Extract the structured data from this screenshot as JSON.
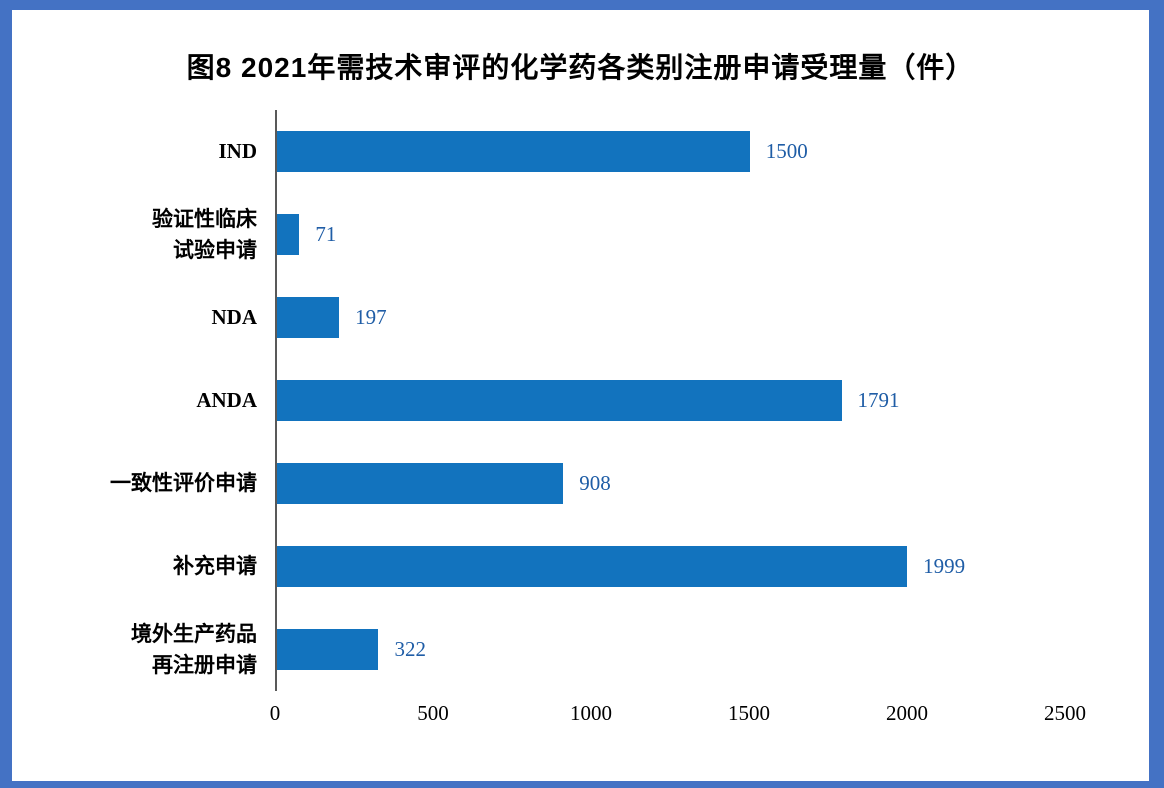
{
  "frame": {
    "border_color": "#4472C4",
    "panel_background": "#FFFFFF",
    "axis_line_color": "#595959"
  },
  "chart_data": {
    "type": "bar",
    "orientation": "horizontal",
    "title": "图8 2021年需技术审评的化学药各类别注册申请受理量（件）",
    "categories": [
      "IND",
      "验证性临床\n试验申请",
      "NDA",
      "ANDA",
      "一致性评价申请",
      "补充申请",
      "境外生产药品\n再注册申请"
    ],
    "values": [
      1500,
      71,
      197,
      1791,
      908,
      1999,
      322
    ],
    "xlabel": "",
    "ylabel": "",
    "xlim": [
      0,
      2500
    ],
    "xticks": [
      0,
      500,
      1000,
      1500,
      2000,
      2500
    ],
    "bar_color": "#1273BE",
    "value_label_color": "#1F5DA6",
    "grid": false,
    "legend": false
  }
}
